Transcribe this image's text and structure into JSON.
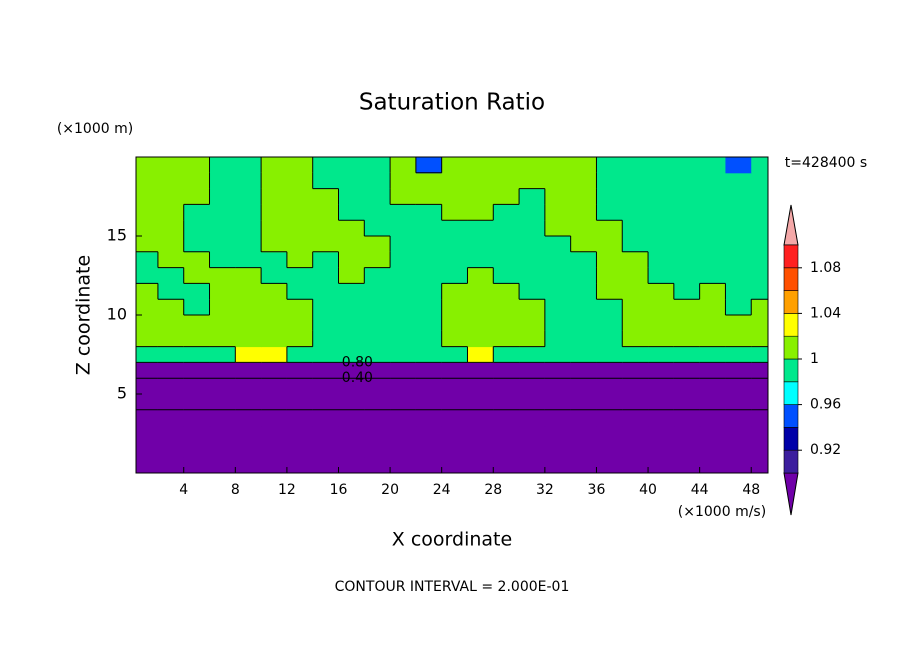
{
  "chart_data": {
    "type": "contour",
    "title": "Saturation Ratio",
    "xlabel": "X coordinate",
    "ylabel": "Z coordinate",
    "x_unit_label": "(×1000 m/s)",
    "y_unit_label": "(×1000 m)",
    "time_label": "t=428400 s",
    "footer": "CONTOUR INTERVAL = 2.000E-01",
    "xlim": [
      0.3,
      49.3
    ],
    "xticks": [
      4,
      8,
      12,
      16,
      20,
      24,
      28,
      32,
      36,
      40,
      44,
      48
    ],
    "ylim": [
      0,
      20
    ],
    "yticks": [
      5,
      10,
      15
    ],
    "x": [
      1,
      3,
      5,
      7,
      9,
      11,
      13,
      15,
      17,
      19,
      21,
      23,
      25,
      27,
      29,
      31,
      33,
      35,
      37,
      39,
      41,
      43,
      45,
      47,
      49
    ],
    "z": [
      0.5,
      1.5,
      2.5,
      3.5,
      4.5,
      5.5,
      6.5,
      7.5,
      8.5,
      9.5,
      10.5,
      11.5,
      12.5,
      13.5,
      14.5,
      15.5,
      16.5,
      17.5,
      18.5,
      19.5
    ],
    "values": [
      [
        0.15,
        0.15,
        0.15,
        0.15,
        0.15,
        0.15,
        0.15,
        0.15,
        0.15,
        0.15,
        0.15,
        0.15,
        0.15,
        0.15,
        0.15,
        0.15,
        0.15,
        0.15,
        0.15,
        0.15,
        0.15,
        0.15,
        0.15,
        0.15,
        0.15
      ],
      [
        0.15,
        0.15,
        0.15,
        0.15,
        0.15,
        0.15,
        0.15,
        0.15,
        0.15,
        0.15,
        0.15,
        0.15,
        0.15,
        0.15,
        0.15,
        0.15,
        0.15,
        0.15,
        0.15,
        0.15,
        0.15,
        0.15,
        0.15,
        0.15,
        0.15
      ],
      [
        0.15,
        0.15,
        0.15,
        0.15,
        0.15,
        0.15,
        0.15,
        0.15,
        0.15,
        0.15,
        0.15,
        0.15,
        0.15,
        0.15,
        0.15,
        0.15,
        0.15,
        0.15,
        0.15,
        0.15,
        0.15,
        0.15,
        0.15,
        0.15,
        0.15
      ],
      [
        0.15,
        0.15,
        0.15,
        0.15,
        0.15,
        0.15,
        0.15,
        0.15,
        0.15,
        0.15,
        0.15,
        0.15,
        0.15,
        0.15,
        0.15,
        0.15,
        0.15,
        0.15,
        0.15,
        0.15,
        0.15,
        0.15,
        0.15,
        0.15,
        0.15
      ],
      [
        0.25,
        0.25,
        0.25,
        0.25,
        0.25,
        0.25,
        0.25,
        0.25,
        0.25,
        0.25,
        0.25,
        0.25,
        0.25,
        0.25,
        0.25,
        0.25,
        0.25,
        0.25,
        0.25,
        0.25,
        0.25,
        0.25,
        0.25,
        0.25,
        0.25
      ],
      [
        0.35,
        0.35,
        0.35,
        0.35,
        0.35,
        0.35,
        0.35,
        0.35,
        0.35,
        0.35,
        0.35,
        0.35,
        0.35,
        0.35,
        0.35,
        0.35,
        0.35,
        0.35,
        0.35,
        0.35,
        0.35,
        0.35,
        0.35,
        0.35,
        0.35
      ],
      [
        0.7,
        0.7,
        0.7,
        0.7,
        0.7,
        0.7,
        0.7,
        0.7,
        0.7,
        0.7,
        0.7,
        0.7,
        0.7,
        0.7,
        0.7,
        0.7,
        0.7,
        0.7,
        0.7,
        0.7,
        0.7,
        0.7,
        0.7,
        0.7,
        0.7
      ],
      [
        0.99,
        0.99,
        0.99,
        0.99,
        1.03,
        1.03,
        0.99,
        0.99,
        0.99,
        0.99,
        0.99,
        0.99,
        0.99,
        1.03,
        0.99,
        0.99,
        0.99,
        0.99,
        0.99,
        0.99,
        0.99,
        0.99,
        0.99,
        0.99,
        0.99
      ],
      [
        1.01,
        1.01,
        1.01,
        1.01,
        1.01,
        1.01,
        1.01,
        0.99,
        0.99,
        0.99,
        0.99,
        0.99,
        1.01,
        1.01,
        1.01,
        1.01,
        0.99,
        0.99,
        0.99,
        1.01,
        1.01,
        1.01,
        1.01,
        1.01,
        1.01
      ],
      [
        1.01,
        1.01,
        1.01,
        1.01,
        1.01,
        1.01,
        1.01,
        0.99,
        0.99,
        0.99,
        0.99,
        0.99,
        1.01,
        1.01,
        1.01,
        1.01,
        0.99,
        0.99,
        0.99,
        1.01,
        1.01,
        1.01,
        1.01,
        1.01,
        1.01
      ],
      [
        1.01,
        1.01,
        0.99,
        1.01,
        1.01,
        1.01,
        1.01,
        0.99,
        0.99,
        0.99,
        0.99,
        0.99,
        1.01,
        1.01,
        1.01,
        1.01,
        0.99,
        0.99,
        0.99,
        1.01,
        1.01,
        1.01,
        1.01,
        0.99,
        1.01
      ],
      [
        1.01,
        0.99,
        0.99,
        1.01,
        1.01,
        1.01,
        0.99,
        0.99,
        0.99,
        0.99,
        0.99,
        0.99,
        1.01,
        1.01,
        1.01,
        0.99,
        0.99,
        0.99,
        1.01,
        1.01,
        1.01,
        0.99,
        1.01,
        0.99,
        0.99
      ],
      [
        0.99,
        0.99,
        1.01,
        1.01,
        1.01,
        0.99,
        0.99,
        0.99,
        1.01,
        0.99,
        0.99,
        0.99,
        0.99,
        1.01,
        0.99,
        0.99,
        0.99,
        0.99,
        1.01,
        1.01,
        0.99,
        0.99,
        0.99,
        0.99,
        0.99
      ],
      [
        0.99,
        1.01,
        1.01,
        0.99,
        0.99,
        0.99,
        1.01,
        0.99,
        1.01,
        1.01,
        0.99,
        0.99,
        0.99,
        0.99,
        0.99,
        0.99,
        0.99,
        0.99,
        1.01,
        1.01,
        0.99,
        0.99,
        0.99,
        0.99,
        0.99
      ],
      [
        1.01,
        1.01,
        0.99,
        0.99,
        0.99,
        1.01,
        1.01,
        1.01,
        1.01,
        1.01,
        0.99,
        0.99,
        0.99,
        0.99,
        0.99,
        0.99,
        0.99,
        1.01,
        1.01,
        0.99,
        0.99,
        0.99,
        0.99,
        0.99,
        0.99
      ],
      [
        1.01,
        1.01,
        0.99,
        0.99,
        0.99,
        1.01,
        1.01,
        1.01,
        1.01,
        0.99,
        0.99,
        0.99,
        0.99,
        0.99,
        0.99,
        0.99,
        1.01,
        1.01,
        1.01,
        0.99,
        0.99,
        0.99,
        0.99,
        0.99,
        0.99
      ],
      [
        1.01,
        1.01,
        0.99,
        0.99,
        0.99,
        1.01,
        1.01,
        1.01,
        0.99,
        0.99,
        0.99,
        0.99,
        1.01,
        1.01,
        0.99,
        0.99,
        1.01,
        1.01,
        0.99,
        0.99,
        0.99,
        0.99,
        0.99,
        0.99,
        0.99
      ],
      [
        1.01,
        1.01,
        1.01,
        0.99,
        0.99,
        1.01,
        1.01,
        1.01,
        0.99,
        0.99,
        1.01,
        1.01,
        1.01,
        1.01,
        1.01,
        0.99,
        1.01,
        1.01,
        0.99,
        0.99,
        0.99,
        0.99,
        0.99,
        0.99,
        0.99
      ],
      [
        1.01,
        1.01,
        1.01,
        0.99,
        0.99,
        1.01,
        1.01,
        0.99,
        0.99,
        0.99,
        1.01,
        1.01,
        1.01,
        1.01,
        1.01,
        1.01,
        1.01,
        1.01,
        0.99,
        0.99,
        0.99,
        0.99,
        0.99,
        0.99,
        0.99
      ],
      [
        1.01,
        1.01,
        1.01,
        0.99,
        0.99,
        1.01,
        1.01,
        0.99,
        0.99,
        0.99,
        1.01,
        0.95,
        1.01,
        1.01,
        1.01,
        1.01,
        1.01,
        1.01,
        0.99,
        0.99,
        0.99,
        0.99,
        0.99,
        0.95,
        0.99
      ]
    ],
    "levels": [
      0.9,
      0.92,
      0.94,
      0.96,
      0.98,
      1,
      1.02,
      1.04,
      1.06,
      1.08,
      1.1
    ],
    "colors": [
      "#7000a8",
      "#3c1e9e",
      "#0000a8",
      "#0050ff",
      "#00ffff",
      "#00e88c",
      "#88f000",
      "#ffff00",
      "#ffa000",
      "#ff5000",
      "#ff2020",
      "#f4a8a8"
    ],
    "colorbar_ticks": [
      {
        "value": 0.92,
        "label": "0.92"
      },
      {
        "value": 0.96,
        "label": "0.96"
      },
      1,
      {
        "value": 1.04,
        "label": "1.04"
      },
      {
        "value": 1.08,
        "label": "1.08"
      }
    ],
    "contour_levels": [
      0.2,
      0.4,
      0.6,
      0.8,
      1
    ],
    "contour_labels": [
      {
        "value": 0.8,
        "label": "0.80"
      },
      {
        "value": 0.4,
        "label": "0.40"
      }
    ]
  }
}
